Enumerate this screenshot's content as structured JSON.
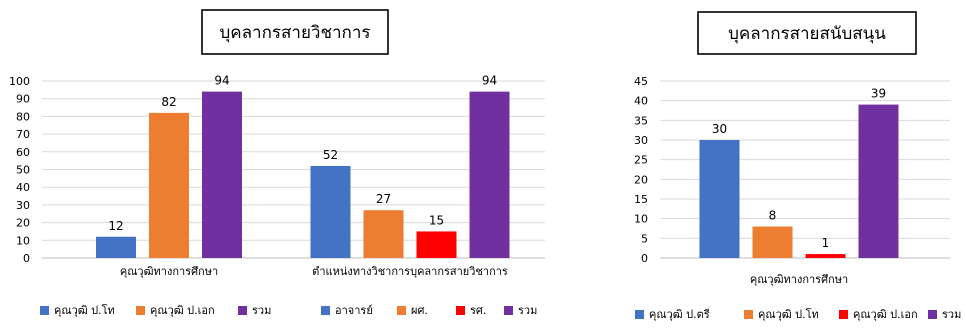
{
  "chart_data": [
    {
      "type": "bar",
      "title": "บุคลากรสายวิชาการ",
      "ylim": [
        0,
        100
      ],
      "yticks": [
        0,
        10,
        20,
        30,
        40,
        50,
        60,
        70,
        80,
        90,
        100
      ],
      "grid": true,
      "legend_position": "bottom",
      "groups": [
        {
          "category": "คุณวุฒิทางการศึกษา",
          "bars": [
            {
              "series": "คุณวุฒิ ป.โท",
              "value": 12,
              "color": "#4472C4"
            },
            {
              "series": "คุณวุฒิ ป.เอก",
              "value": 82,
              "color": "#ED7D31"
            },
            {
              "series": "รวม",
              "value": 94,
              "color": "#7030A0"
            }
          ]
        },
        {
          "category": "ตำแหน่งทางวิชาการบุคลากรสายวิชาการ",
          "bars": [
            {
              "series": "อาจารย์",
              "value": 52,
              "color": "#4472C4"
            },
            {
              "series": "ผศ.",
              "value": 27,
              "color": "#ED7D31"
            },
            {
              "series": "รศ.",
              "value": 15,
              "color": "#FF0000"
            },
            {
              "series": "รวม",
              "value": 94,
              "color": "#7030A0"
            }
          ]
        }
      ],
      "legend": [
        {
          "label": "คุณวุฒิ ป.โท",
          "color": "#4472C4"
        },
        {
          "label": "คุณวุฒิ ป.เอก",
          "color": "#ED7D31"
        },
        {
          "label": "รวม",
          "color": "#7030A0"
        },
        {
          "label": "อาจารย์",
          "color": "#4472C4"
        },
        {
          "label": "ผศ.",
          "color": "#ED7D31"
        },
        {
          "label": "รศ.",
          "color": "#FF0000"
        },
        {
          "label": "รวม",
          "color": "#7030A0"
        }
      ]
    },
    {
      "type": "bar",
      "title": "บุคลากรสายสนับสนุน",
      "ylim": [
        0,
        45
      ],
      "yticks": [
        0,
        5,
        10,
        15,
        20,
        25,
        30,
        35,
        40,
        45
      ],
      "grid": true,
      "legend_position": "bottom",
      "groups": [
        {
          "category": "คุณวุฒิทางการศึกษา",
          "bars": [
            {
              "series": "คุณวุฒิ ป.ตรี",
              "value": 30,
              "color": "#4472C4"
            },
            {
              "series": "คุณวุฒิ ป.โท",
              "value": 8,
              "color": "#ED7D31"
            },
            {
              "series": "คุณวุฒิ ป.เอก",
              "value": 1,
              "color": "#FF0000"
            },
            {
              "series": "รวม",
              "value": 39,
              "color": "#7030A0"
            }
          ]
        }
      ],
      "legend": [
        {
          "label": "คุณวุฒิ ป.ตรี",
          "color": "#4472C4"
        },
        {
          "label": "คุณวุฒิ ป.โท",
          "color": "#ED7D31"
        },
        {
          "label": "คุณวุฒิ ป.เอก",
          "color": "#FF0000"
        },
        {
          "label": "รวม",
          "color": "#7030A0"
        }
      ]
    }
  ]
}
